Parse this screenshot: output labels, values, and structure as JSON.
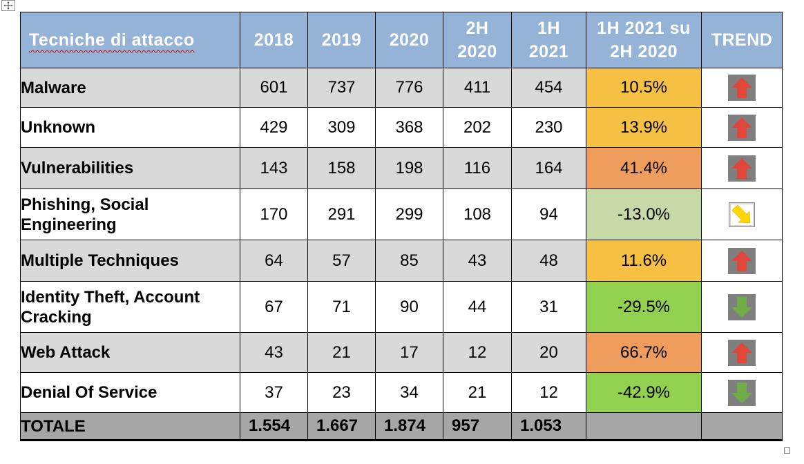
{
  "colors": {
    "header_bg": "#95b3d7",
    "header_text": "#ffffff",
    "row_shaded": "#d9d9d9",
    "total_bg": "#a6a6a6",
    "pct_amber": "#f6c143",
    "pct_orange": "#ee9d5c",
    "pct_light_green": "#c6d9a6",
    "pct_green": "#92d050",
    "arrow_up": "#e0473a",
    "arrow_down": "#70ad47",
    "arrow_diag": "#ffd700"
  },
  "header": {
    "technique": "Tecniche di attacco",
    "y2018": "2018",
    "y2019": "2019",
    "y2020": "2020",
    "h2_2020_line1": "2H",
    "h2_2020_line2": "2020",
    "h1_2021_line1": "1H",
    "h1_2021_line2": "2021",
    "change_line1": "1H 2021 su",
    "change_line2": "2H 2020",
    "trend": "TREND"
  },
  "rows": [
    {
      "technique": "Malware",
      "y2018": "601",
      "y2019": "737",
      "y2020": "776",
      "h2_2020": "411",
      "h1_2021": "454",
      "change": "10.5%",
      "change_color": "#f6c143",
      "trend_icon": "arrow-up-icon"
    },
    {
      "technique": "Unknown",
      "y2018": "429",
      "y2019": "309",
      "y2020": "368",
      "h2_2020": "202",
      "h1_2021": "230",
      "change": "13.9%",
      "change_color": "#f6c143",
      "trend_icon": "arrow-up-icon"
    },
    {
      "technique": "Vulnerabilities",
      "y2018": "143",
      "y2019": "158",
      "y2020": "198",
      "h2_2020": "116",
      "h1_2021": "164",
      "change": "41.4%",
      "change_color": "#ee9d5c",
      "trend_icon": "arrow-up-icon"
    },
    {
      "technique_line1": "Phishing, Social",
      "technique_line2": "Engineering",
      "y2018": "170",
      "y2019": "291",
      "y2020": "299",
      "h2_2020": "108",
      "h1_2021": "94",
      "change": "-13.0%",
      "change_color": "#c6d9a6",
      "trend_icon": "arrow-down-right-icon"
    },
    {
      "technique": "Multiple Techniques",
      "y2018": "64",
      "y2019": "57",
      "y2020": "85",
      "h2_2020": "43",
      "h1_2021": "48",
      "change": "11.6%",
      "change_color": "#f6c143",
      "trend_icon": "arrow-up-icon"
    },
    {
      "technique_line1": "Identity Theft, Account",
      "technique_line2": "Cracking",
      "y2018": "67",
      "y2019": "71",
      "y2020": "90",
      "h2_2020": "44",
      "h1_2021": "31",
      "change": "-29.5%",
      "change_color": "#92d050",
      "trend_icon": "arrow-down-icon"
    },
    {
      "technique": "Web Attack",
      "y2018": "43",
      "y2019": "21",
      "y2020": "17",
      "h2_2020": "12",
      "h1_2021": "20",
      "change": "66.7%",
      "change_color": "#ee9d5c",
      "trend_icon": "arrow-up-icon"
    },
    {
      "technique": "Denial Of Service",
      "y2018": "37",
      "y2019": "23",
      "y2020": "34",
      "h2_2020": "21",
      "h1_2021": "12",
      "change": "-42.9%",
      "change_color": "#92d050",
      "trend_icon": "arrow-down-icon"
    }
  ],
  "total": {
    "label": "TOTALE",
    "y2018": "1.554",
    "y2019": "1.667",
    "y2020": "1.874",
    "h2_2020": "957",
    "h1_2021": "1.053"
  },
  "icons": {
    "table_move_handle": "move-handle-icon",
    "table_resize_handle": "resize-handle-icon"
  }
}
